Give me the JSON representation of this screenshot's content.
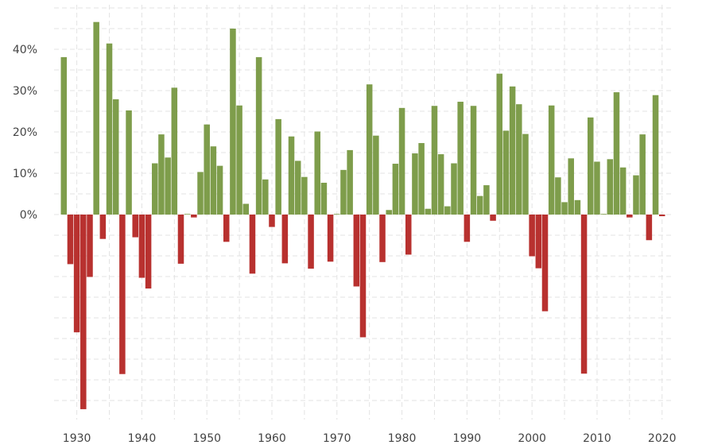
{
  "chart_data": {
    "type": "bar",
    "title": "",
    "xlabel": "",
    "ylabel": "",
    "x_ticks": [
      "1930",
      "1940",
      "1950",
      "1960",
      "1970",
      "1980",
      "1990",
      "2000",
      "2010",
      "2020"
    ],
    "y_ticks": [
      "0%",
      "10%",
      "20%",
      "30%",
      "40%"
    ],
    "y_tick_values": [
      0,
      10,
      20,
      30,
      40
    ],
    "ylim": [
      -48,
      50
    ],
    "xlim": [
      1926.5,
      2021.5
    ],
    "grid": true,
    "colors": {
      "positive": "#7e9d4b",
      "negative": "#b8312f"
    },
    "years": [
      1928,
      1929,
      1930,
      1931,
      1932,
      1933,
      1934,
      1935,
      1936,
      1937,
      1938,
      1939,
      1940,
      1941,
      1942,
      1943,
      1944,
      1945,
      1946,
      1947,
      1948,
      1949,
      1950,
      1951,
      1952,
      1953,
      1954,
      1955,
      1956,
      1957,
      1958,
      1959,
      1960,
      1961,
      1962,
      1963,
      1964,
      1965,
      1966,
      1967,
      1968,
      1969,
      1970,
      1971,
      1972,
      1973,
      1974,
      1975,
      1976,
      1977,
      1978,
      1979,
      1980,
      1981,
      1982,
      1983,
      1984,
      1985,
      1986,
      1987,
      1988,
      1989,
      1990,
      1991,
      1992,
      1993,
      1994,
      1995,
      1996,
      1997,
      1998,
      1999,
      2000,
      2001,
      2002,
      2003,
      2004,
      2005,
      2006,
      2007,
      2008,
      2009,
      2010,
      2011,
      2012,
      2013,
      2014,
      2015,
      2016,
      2017,
      2018,
      2019,
      2020
    ],
    "values": [
      38.1,
      -12.0,
      -28.5,
      -47.1,
      -15.1,
      46.6,
      -5.9,
      41.4,
      27.9,
      -38.6,
      25.2,
      -5.5,
      -15.3,
      -17.9,
      12.4,
      19.4,
      13.8,
      30.7,
      -11.9,
      0.0,
      -0.7,
      10.3,
      21.8,
      16.5,
      11.8,
      -6.6,
      45.0,
      26.4,
      2.6,
      -14.3,
      38.1,
      8.5,
      -3.0,
      23.1,
      -11.8,
      18.9,
      13.0,
      9.1,
      -13.1,
      20.1,
      7.7,
      -11.4,
      0.1,
      10.8,
      15.6,
      -17.4,
      -29.7,
      31.5,
      19.1,
      -11.5,
      1.1,
      12.3,
      25.8,
      -9.7,
      14.8,
      17.3,
      1.4,
      26.3,
      14.6,
      2.0,
      12.4,
      27.3,
      -6.6,
      26.3,
      4.5,
      7.1,
      -1.5,
      34.1,
      20.3,
      31.0,
      26.7,
      19.5,
      -10.1,
      -13.0,
      -23.4,
      26.4,
      9.0,
      3.0,
      13.6,
      3.5,
      -38.5,
      23.5,
      12.8,
      0.0,
      13.4,
      29.6,
      11.4,
      -0.7,
      9.5,
      19.4,
      -6.2,
      28.9,
      -0.4
    ]
  }
}
